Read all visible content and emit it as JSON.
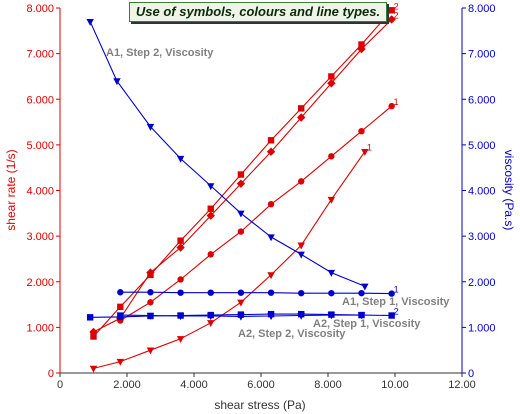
{
  "chart_data": {
    "type": "line",
    "title": "Use of symbols, colours and line types.",
    "xlabel": "shear stress (Pa)",
    "ylabel_left": "shear rate (1/s)",
    "ylabel_right": "viscosity (Pa.s)",
    "xlim": [
      0,
      12
    ],
    "ylim_left": [
      0,
      8000
    ],
    "ylim_right": [
      0,
      8
    ],
    "x_ticks": [
      "0",
      "2.000",
      "4.000",
      "6.000",
      "8.000",
      "10.00",
      "12.00"
    ],
    "y_left_ticks": [
      "0",
      "1.000",
      "2.000",
      "3.000",
      "4.000",
      "5.000",
      "6.000",
      "7.000",
      "8.000"
    ],
    "y_right_ticks": [
      "0",
      "1.000",
      "2.000",
      "3.000",
      "4.000",
      "5.000",
      "6.000",
      "7.000",
      "8.000"
    ],
    "colors": {
      "shear_rate": "#dd0000",
      "viscosity": "#0000cc",
      "annotation": "#808080",
      "title_bg": "#eef5e8"
    },
    "series": [
      {
        "axis": "left",
        "marker": "square",
        "end_label": "2",
        "x": [
          1.0,
          1.8,
          2.7,
          3.6,
          4.5,
          5.4,
          6.3,
          7.2,
          8.1,
          9.0,
          9.9
        ],
        "values": [
          800,
          1450,
          2150,
          2900,
          3600,
          4350,
          5100,
          5800,
          6500,
          7200,
          7950
        ]
      },
      {
        "axis": "left",
        "marker": "diamond",
        "end_label": "2",
        "x": [
          1.0,
          1.8,
          2.7,
          3.6,
          4.5,
          5.4,
          6.3,
          7.2,
          8.1,
          9.0,
          9.9
        ],
        "values": [
          900,
          1200,
          2200,
          2750,
          3450,
          4150,
          4850,
          5600,
          6350,
          7100,
          7750
        ]
      },
      {
        "axis": "left",
        "marker": "circle",
        "end_label": "1",
        "x": [
          1.8,
          2.7,
          3.6,
          4.5,
          5.4,
          6.3,
          7.2,
          8.1,
          9.0,
          9.9
        ],
        "values": [
          1150,
          1550,
          2050,
          2600,
          3100,
          3700,
          4200,
          4750,
          5300,
          5850
        ]
      },
      {
        "axis": "left",
        "marker": "triangle-down",
        "end_label": "1",
        "x": [
          1.0,
          1.8,
          2.7,
          3.6,
          4.5,
          5.4,
          6.3,
          7.2,
          8.1,
          9.1
        ],
        "values": [
          100,
          250,
          500,
          750,
          1100,
          1550,
          2150,
          2800,
          3800,
          4850
        ]
      },
      {
        "axis": "right",
        "marker": "triangle-down",
        "name": "A1, Step 2, Viscosity",
        "x": [
          0.9,
          1.7,
          2.7,
          3.6,
          4.5,
          5.4,
          6.3,
          7.2,
          8.1,
          9.1
        ],
        "values": [
          7.7,
          6.4,
          5.4,
          4.7,
          4.1,
          3.5,
          2.98,
          2.6,
          2.2,
          1.9
        ]
      },
      {
        "axis": "right",
        "marker": "circle",
        "name": "A1, Step 1, Viscosity",
        "end_label": "1",
        "x": [
          1.8,
          2.7,
          3.6,
          4.5,
          5.4,
          6.3,
          7.2,
          8.1,
          9.0,
          9.9
        ],
        "values": [
          1.77,
          1.77,
          1.76,
          1.76,
          1.76,
          1.76,
          1.75,
          1.75,
          1.75,
          1.74
        ]
      },
      {
        "axis": "right",
        "marker": "square",
        "name": "A2, Step 1, Viscosity",
        "end_label": "2",
        "x": [
          0.9,
          1.8,
          2.7,
          3.6,
          4.5,
          5.4,
          6.3,
          7.2,
          8.1,
          9.0,
          9.9
        ],
        "values": [
          1.22,
          1.23,
          1.25,
          1.26,
          1.27,
          1.28,
          1.29,
          1.29,
          1.28,
          1.27,
          1.26
        ]
      },
      {
        "axis": "right",
        "marker": "triangle-down",
        "name": "A2, Step 2, Viscosity",
        "x": [
          1.8,
          2.7,
          3.6,
          4.5,
          5.4,
          6.3,
          7.2,
          8.1,
          9.0
        ],
        "values": [
          1.27,
          1.26,
          1.25,
          1.25,
          1.24,
          1.25,
          1.26,
          1.27,
          1.27
        ]
      }
    ],
    "annotations": [
      "A1, Step 2, Viscosity",
      "A1, Step 1, Viscosity",
      "A2, Step 1, Viscosity",
      "A2, Step 2, Viscosity"
    ]
  }
}
